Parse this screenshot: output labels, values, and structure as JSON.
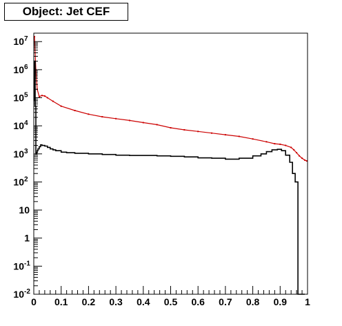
{
  "chart_data": {
    "type": "line",
    "title": "Object: Jet CEF",
    "xlabel": "",
    "ylabel": "",
    "x_range": [
      0,
      1
    ],
    "y_range": [
      0.01,
      20000000
    ],
    "y_scale": "log",
    "grid": false,
    "x_ticks": [
      {
        "value": 0,
        "label": "0"
      },
      {
        "value": 0.1,
        "label": "0.1"
      },
      {
        "value": 0.2,
        "label": "0.2"
      },
      {
        "value": 0.3,
        "label": "0.3"
      },
      {
        "value": 0.4,
        "label": "0.4"
      },
      {
        "value": 0.5,
        "label": "0.5"
      },
      {
        "value": 0.6,
        "label": "0.6"
      },
      {
        "value": 0.7,
        "label": "0.7"
      },
      {
        "value": 0.8,
        "label": "0.8"
      },
      {
        "value": 0.9,
        "label": "0.9"
      },
      {
        "value": 1,
        "label": "1"
      }
    ],
    "y_ticks": [
      {
        "value": 0.01,
        "base": "10",
        "exp": "-2"
      },
      {
        "value": 0.1,
        "base": "10",
        "exp": "-1"
      },
      {
        "value": 1,
        "base": "1",
        "exp": ""
      },
      {
        "value": 10,
        "base": "10",
        "exp": ""
      },
      {
        "value": 100,
        "base": "10",
        "exp": "2"
      },
      {
        "value": 1000,
        "base": "10",
        "exp": "3"
      },
      {
        "value": 10000,
        "base": "10",
        "exp": "4"
      },
      {
        "value": 100000,
        "base": "10",
        "exp": "5"
      },
      {
        "value": 1000000,
        "base": "10",
        "exp": "6"
      },
      {
        "value": 10000000,
        "base": "10",
        "exp": "7"
      }
    ],
    "series": [
      {
        "color": "#cc0000",
        "style": "markers",
        "x": [
          0.0025,
          0.0075,
          0.0125,
          0.02,
          0.03,
          0.04,
          0.05,
          0.07,
          0.1,
          0.15,
          0.2,
          0.25,
          0.3,
          0.35,
          0.4,
          0.45,
          0.5,
          0.55,
          0.6,
          0.65,
          0.7,
          0.75,
          0.8,
          0.85,
          0.88,
          0.9,
          0.92,
          0.94,
          0.95,
          0.96,
          0.97,
          0.98,
          0.99,
          0.997
        ],
        "values": [
          15000000,
          1000000,
          200000,
          110000,
          120000,
          115000,
          100000,
          75000,
          50000,
          35000,
          26000,
          21000,
          18000,
          15500,
          13000,
          11000,
          8500,
          7200,
          6300,
          5500,
          4800,
          4200,
          3400,
          2700,
          2300,
          2200,
          2000,
          1700,
          1400,
          1100,
          850,
          700,
          600,
          560
        ]
      },
      {
        "color": "#000000",
        "style": "step",
        "x": [
          0,
          0.0025,
          0.005,
          0.0075,
          0.01,
          0.0125,
          0.015,
          0.02,
          0.025,
          0.03,
          0.04,
          0.05,
          0.06,
          0.07,
          0.08,
          0.1,
          0.12,
          0.15,
          0.2,
          0.25,
          0.3,
          0.35,
          0.4,
          0.45,
          0.5,
          0.55,
          0.6,
          0.65,
          0.7,
          0.75,
          0.8,
          0.83,
          0.85,
          0.87,
          0.89,
          0.905,
          0.92,
          0.935,
          0.945,
          0.955,
          0.965,
          0.975,
          0.985
        ],
        "values": [
          80000,
          2000000,
          50000,
          1000,
          1100,
          1300,
          1500,
          1800,
          2100,
          2000,
          1900,
          1700,
          1500,
          1400,
          1300,
          1150,
          1100,
          1050,
          1000,
          950,
          900,
          880,
          880,
          850,
          820,
          780,
          720,
          700,
          650,
          700,
          850,
          1000,
          1200,
          1400,
          1450,
          1300,
          900,
          500,
          200,
          100,
          0.01,
          0.01,
          0.01
        ]
      }
    ]
  }
}
